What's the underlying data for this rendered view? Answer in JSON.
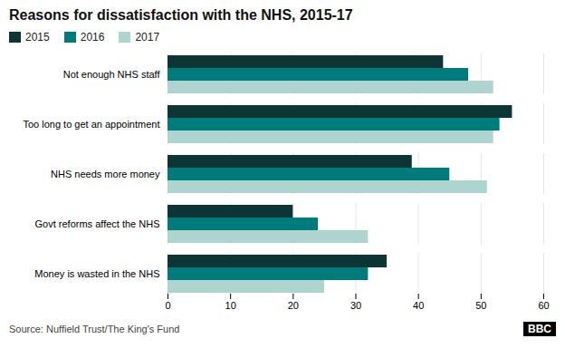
{
  "chart_data": {
    "type": "bar",
    "orientation": "horizontal",
    "title": "Reasons for dissatisfaction with the NHS, 2015-17",
    "categories": [
      "Not enough NHS staff",
      "Too long to get an appointment",
      "NHS needs more money",
      "Govt reforms affect the NHS",
      "Money is wasted in the NHS"
    ],
    "series": [
      {
        "name": "2015",
        "color": "#0d3535",
        "values": [
          44,
          55,
          39,
          20,
          35
        ]
      },
      {
        "name": "2016",
        "color": "#007b7b",
        "values": [
          48,
          53,
          45,
          24,
          32
        ]
      },
      {
        "name": "2017",
        "color": "#aed4cf",
        "values": [
          52,
          52,
          51,
          32,
          25
        ]
      }
    ],
    "xlim": [
      0,
      60
    ],
    "xticks": [
      0,
      10,
      20,
      30,
      40,
      50,
      60
    ],
    "grid": true,
    "legend": "top left",
    "source": "Source: Nuffield Trust/The King's Fund",
    "annotations": [
      "BBC"
    ]
  }
}
